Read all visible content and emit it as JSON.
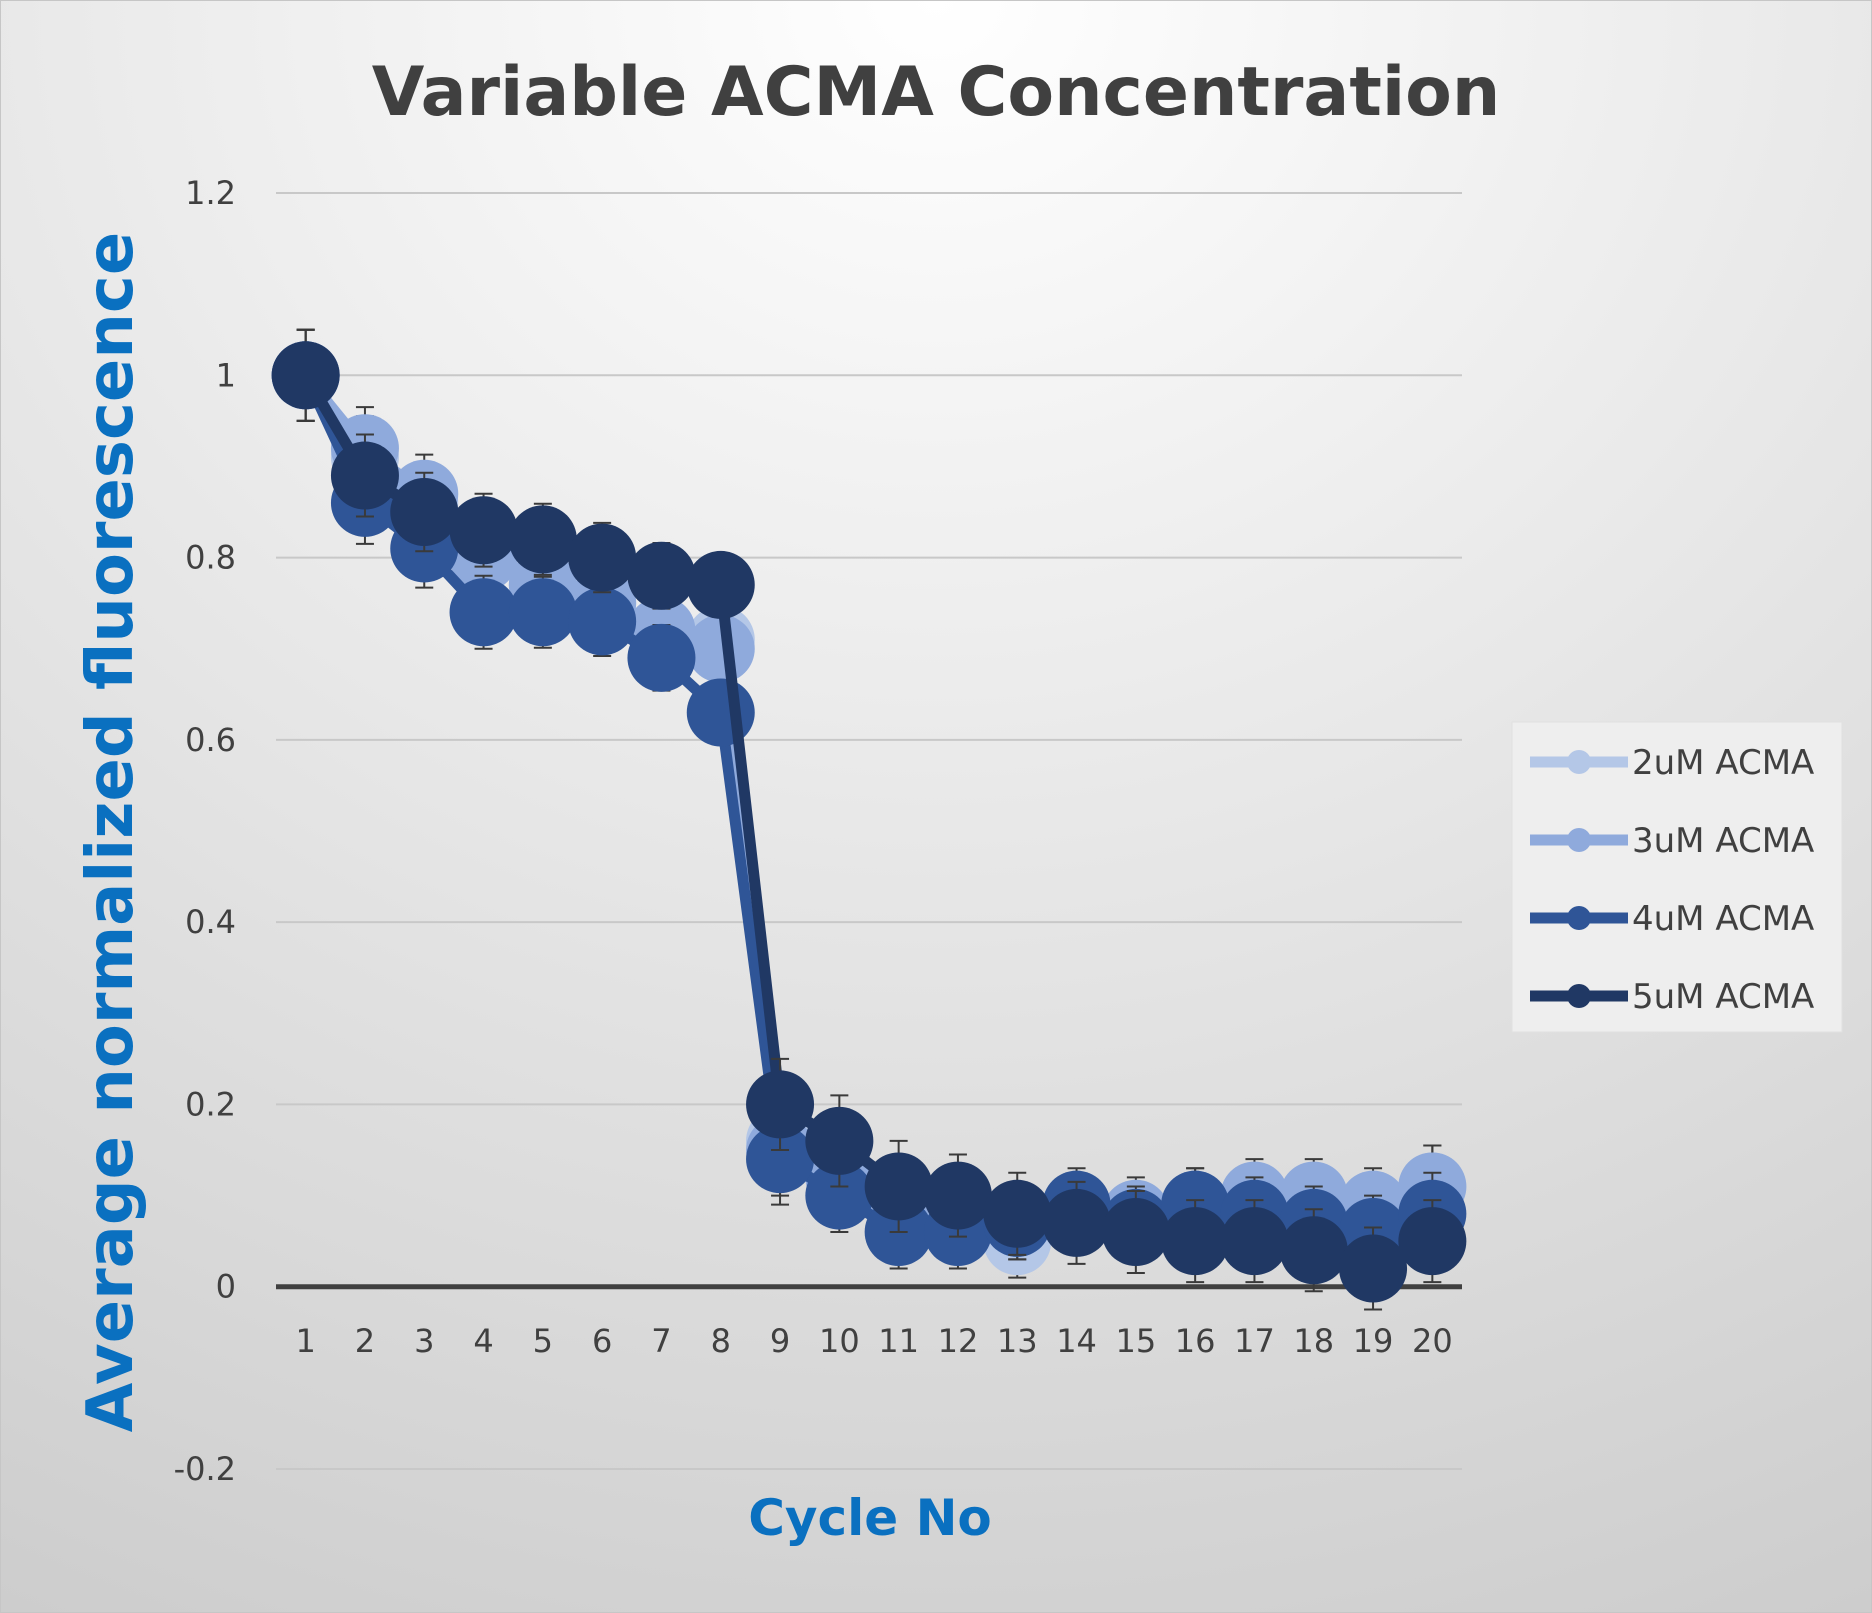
{
  "chart_data": {
    "type": "line",
    "title": "Variable ACMA Concentration",
    "xlabel": "Cycle No",
    "ylabel": "Average normalized fluorescence",
    "categories": [
      "1",
      "2",
      "3",
      "4",
      "5",
      "6",
      "7",
      "8",
      "9",
      "10",
      "11",
      "12",
      "13",
      "14",
      "15",
      "16",
      "17",
      "18",
      "19",
      "20"
    ],
    "ylim": [
      -0.2,
      1.2
    ],
    "yticks": [
      -0.2,
      0,
      0.2,
      0.4,
      0.6,
      0.8,
      1,
      1.2
    ],
    "ytick_labels": [
      "-0.2",
      "0",
      "0.2",
      "0.4",
      "0.6",
      "0.8",
      "1",
      "1.2"
    ],
    "grid": true,
    "legend_position": "right",
    "error_bars": true,
    "series": [
      {
        "name": "2uM ACMA",
        "color": "#b4c7e7",
        "values": [
          1,
          0.91,
          0.86,
          0.81,
          0.77,
          0.75,
          0.72,
          0.71,
          0.16,
          0.12,
          0.09,
          0.08,
          0.05,
          0.08,
          0.07,
          0.08,
          0.09,
          0.09,
          0.08,
          0.11
        ],
        "errors": [
          0.05,
          0.045,
          0.043,
          0.04,
          0.039,
          0.038,
          0.036,
          0.035,
          0.05,
          0.04,
          0.04,
          0.04,
          0.04,
          0.04,
          0.04,
          0.04,
          0.04,
          0.04,
          0.04,
          0.045
        ]
      },
      {
        "name": "3uM ACMA",
        "color": "#8faadc",
        "values": [
          1,
          0.92,
          0.87,
          0.8,
          0.77,
          0.75,
          0.72,
          0.7,
          0.15,
          0.12,
          0.1,
          0.09,
          0.07,
          0.08,
          0.08,
          0.09,
          0.1,
          0.1,
          0.09,
          0.11
        ],
        "errors": [
          0.05,
          0.045,
          0.043,
          0.04,
          0.039,
          0.038,
          0.036,
          0.035,
          0.05,
          0.04,
          0.04,
          0.04,
          0.04,
          0.04,
          0.04,
          0.04,
          0.04,
          0.04,
          0.04,
          0.045
        ]
      },
      {
        "name": "4uM ACMA",
        "color": "#2f5597",
        "values": [
          1,
          0.86,
          0.81,
          0.74,
          0.74,
          0.73,
          0.69,
          0.63,
          0.14,
          0.1,
          0.06,
          0.06,
          0.07,
          0.09,
          0.07,
          0.09,
          0.08,
          0.07,
          0.06,
          0.08
        ],
        "errors": [
          0.05,
          0.045,
          0.043,
          0.04,
          0.039,
          0.038,
          0.036,
          0.035,
          0.05,
          0.04,
          0.04,
          0.04,
          0.04,
          0.04,
          0.04,
          0.04,
          0.04,
          0.04,
          0.04,
          0.045
        ]
      },
      {
        "name": "5uM ACMA",
        "color": "#203864",
        "values": [
          1,
          0.89,
          0.85,
          0.83,
          0.82,
          0.8,
          0.78,
          0.77,
          0.2,
          0.16,
          0.11,
          0.1,
          0.08,
          0.07,
          0.06,
          0.05,
          0.05,
          0.04,
          0.02,
          0.05
        ],
        "errors": [
          0.05,
          0.045,
          0.043,
          0.04,
          0.039,
          0.038,
          0.036,
          0.035,
          0.05,
          0.05,
          0.05,
          0.045,
          0.045,
          0.045,
          0.045,
          0.045,
          0.045,
          0.045,
          0.045,
          0.045
        ]
      }
    ]
  }
}
